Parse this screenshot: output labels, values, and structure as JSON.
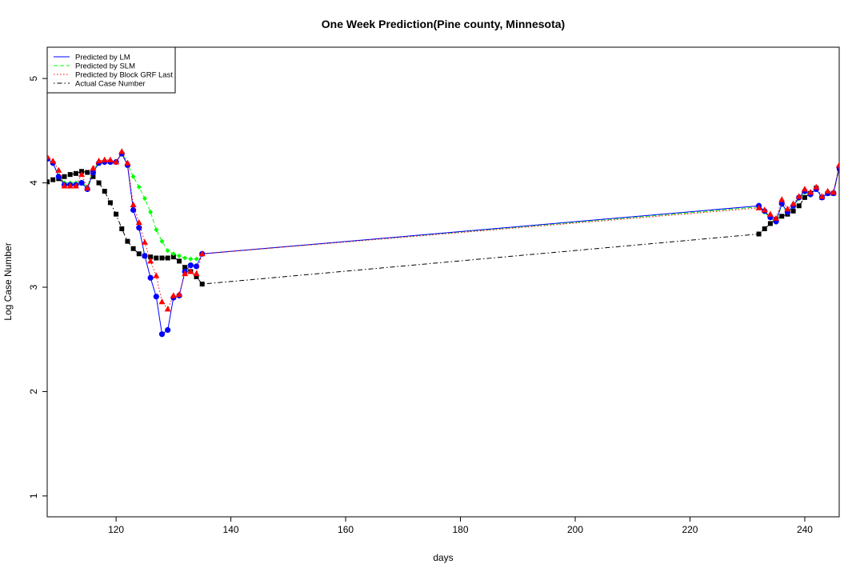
{
  "chart_data": {
    "type": "line",
    "title": "One Week Prediction(Pine county, Minnesota)",
    "xlabel": "days",
    "ylabel": "Log Case Number",
    "xlim": [
      108,
      246
    ],
    "ylim": [
      0.8,
      5.3
    ],
    "x_ticks": [
      120,
      140,
      160,
      180,
      200,
      220,
      240
    ],
    "y_ticks": [
      1,
      2,
      3,
      4,
      5
    ],
    "grid": false,
    "legend_position": "top-left",
    "x": [
      108,
      109,
      110,
      111,
      112,
      113,
      114,
      115,
      116,
      117,
      118,
      119,
      120,
      121,
      122,
      123,
      124,
      125,
      126,
      127,
      128,
      129,
      130,
      131,
      132,
      133,
      134,
      135,
      232,
      233,
      234,
      235,
      236,
      237,
      238,
      239,
      240,
      241,
      242,
      243,
      244,
      245,
      246
    ],
    "series": [
      {
        "name": "Predicted by LM",
        "color": "#0000ff",
        "line_style": "solid",
        "marker": "circle",
        "values": [
          4.23,
          4.19,
          4.06,
          3.98,
          3.98,
          3.98,
          4.0,
          3.94,
          4.1,
          4.19,
          4.2,
          4.2,
          4.2,
          4.28,
          4.17,
          3.74,
          3.57,
          3.3,
          3.09,
          2.91,
          2.55,
          2.59,
          2.9,
          2.92,
          3.15,
          3.21,
          3.2,
          3.32,
          3.78,
          3.73,
          3.67,
          3.63,
          3.8,
          3.72,
          3.78,
          3.86,
          3.92,
          3.89,
          3.94,
          3.86,
          3.9,
          3.9,
          4.15
        ]
      },
      {
        "name": "Predicted by SLM",
        "color": "#00ff00",
        "line_style": "dashed",
        "marker": "diamond",
        "values": [
          4.24,
          4.19,
          4.07,
          4.0,
          4.0,
          4.0,
          4.01,
          3.96,
          4.12,
          4.2,
          4.21,
          4.21,
          4.2,
          4.29,
          4.18,
          4.06,
          3.96,
          3.85,
          3.72,
          3.55,
          3.44,
          3.35,
          3.32,
          3.3,
          3.28,
          3.27,
          3.27,
          3.32,
          3.77,
          3.72,
          3.66,
          3.62,
          3.79,
          3.71,
          3.77,
          3.85,
          3.91,
          3.88,
          3.94,
          3.86,
          3.9,
          3.9,
          4.16
        ]
      },
      {
        "name": "Predicted by Block GRF Last",
        "color": "#ff0000",
        "line_style": "dotted",
        "marker": "triangle",
        "values": [
          4.25,
          4.21,
          4.12,
          3.97,
          3.97,
          3.97,
          4.08,
          3.95,
          4.14,
          4.21,
          4.22,
          4.22,
          4.2,
          4.3,
          4.19,
          3.79,
          3.62,
          3.43,
          3.25,
          3.11,
          2.86,
          2.79,
          2.92,
          2.93,
          3.13,
          3.15,
          3.13,
          3.32,
          3.76,
          3.74,
          3.7,
          3.66,
          3.84,
          3.75,
          3.8,
          3.87,
          3.94,
          3.91,
          3.96,
          3.87,
          3.92,
          3.91,
          4.17
        ]
      },
      {
        "name": "Actual Case Number",
        "color": "#000000",
        "line_style": "dotdash",
        "marker": "square",
        "values": [
          4.01,
          4.03,
          4.04,
          4.06,
          4.08,
          4.09,
          4.11,
          4.1,
          4.06,
          4.0,
          3.92,
          3.81,
          3.7,
          3.56,
          3.44,
          3.37,
          3.32,
          3.3,
          3.29,
          3.28,
          3.28,
          3.28,
          3.29,
          3.25,
          3.19,
          3.15,
          3.1,
          3.03,
          3.51,
          3.56,
          3.61,
          3.65,
          3.68,
          3.7,
          3.73,
          3.78,
          3.86,
          3.9,
          3.95,
          3.86,
          3.9,
          3.9,
          4.14
        ]
      }
    ]
  }
}
